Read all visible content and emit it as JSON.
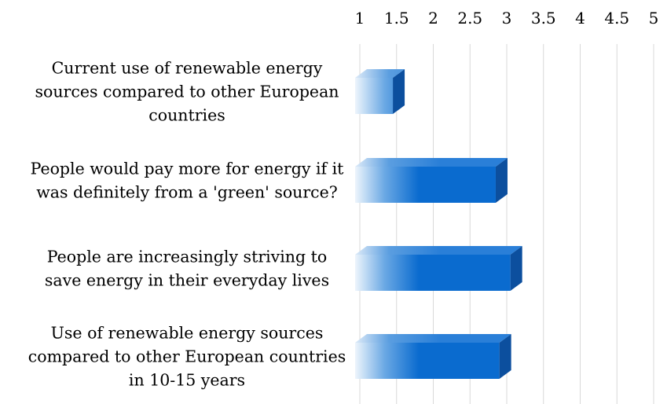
{
  "chart_data": {
    "type": "bar",
    "orientation": "horizontal",
    "style": "3d",
    "title": "",
    "xlabel": "",
    "ylabel": "",
    "xlim": [
      1,
      5
    ],
    "xticks": [
      "1",
      "1.5",
      "2",
      "2.5",
      "3",
      "3.5",
      "4",
      "4.5",
      "5"
    ],
    "tick_position": "top",
    "grid": true,
    "legend": "none",
    "categories": [
      [
        "Current use of renewable energy",
        "sources compared to other European",
        "countries"
      ],
      [
        "People would pay more for energy if it",
        "was definitely from a 'green' source?"
      ],
      [
        "People are increasingly striving to",
        "save energy in their everyday lives"
      ],
      [
        "Use of renewable energy sources",
        "compared to other European countries",
        "in 10-15 years"
      ]
    ],
    "values": [
      1.45,
      2.85,
      3.05,
      2.9
    ],
    "colors": {
      "bar": "#0a6bcf",
      "bar_dark": "#0c4f9e",
      "bar_top": "#2a7fd8",
      "bar_light": "#eef5fc",
      "grid": "#d9d9d9"
    }
  }
}
